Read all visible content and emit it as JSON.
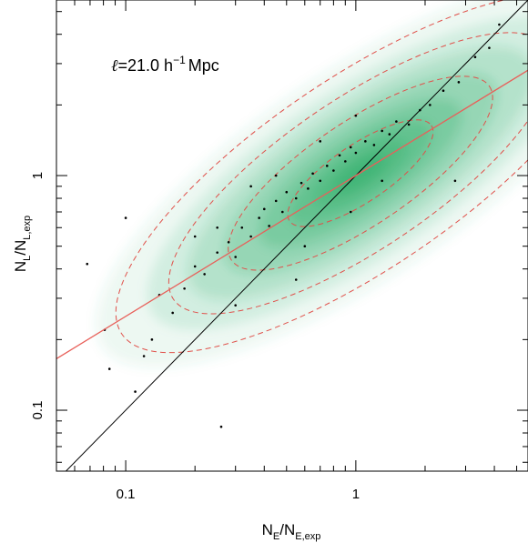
{
  "chart_data": {
    "type": "scatter",
    "title": "",
    "annotation": {
      "ell": "ℓ",
      "text": "=21.0 h",
      "superscript": "−1",
      "unit": "Mpc"
    },
    "xlabel": {
      "main": "N",
      "sub1": "E",
      "slash": "/N",
      "sub2": "E,exp"
    },
    "ylabel": {
      "main": "N",
      "sub1": "L",
      "slash": "/N",
      "sub2": "L,exp"
    },
    "xscale": "log",
    "yscale": "log",
    "xlim": [
      0.05,
      5.6
    ],
    "ylim": [
      0.055,
      5.6
    ],
    "x_tick_labels": [
      {
        "value": 0.1,
        "label": "0.1"
      },
      {
        "value": 1,
        "label": "1"
      }
    ],
    "y_tick_labels": [
      {
        "value": 0.1,
        "label": "0.1"
      },
      {
        "value": 1,
        "label": "1"
      }
    ],
    "grid": false,
    "colors": {
      "density_fill": "#2fae6a",
      "contour": "#e0504a",
      "fit_line": "#e8605a",
      "identity_line": "#000000",
      "points": "#000000"
    },
    "density": {
      "center_log": [
        0.02,
        0.01
      ],
      "sigma_major_log": 0.52,
      "sigma_minor_log": 0.17,
      "angle_deg": 34
    },
    "contour_levels_sigma": [
      0.55,
      1.0,
      1.45,
      1.85
    ],
    "fit_line": {
      "slope": 0.6,
      "intercept_log": 0.0
    },
    "identity_line": {
      "slope": 1,
      "intercept_log": 0
    },
    "points": [
      [
        0.068,
        0.42
      ],
      [
        0.081,
        0.22
      ],
      [
        0.085,
        0.15
      ],
      [
        0.1,
        0.66
      ],
      [
        0.11,
        0.12
      ],
      [
        0.12,
        0.17
      ],
      [
        0.13,
        0.2
      ],
      [
        0.26,
        0.085
      ],
      [
        0.14,
        0.31
      ],
      [
        0.16,
        0.26
      ],
      [
        0.18,
        0.33
      ],
      [
        0.2,
        0.41
      ],
      [
        0.22,
        0.38
      ],
      [
        0.25,
        0.47
      ],
      [
        0.28,
        0.52
      ],
      [
        0.3,
        0.45
      ],
      [
        0.32,
        0.6
      ],
      [
        0.35,
        0.55
      ],
      [
        0.38,
        0.66
      ],
      [
        0.4,
        0.72
      ],
      [
        0.42,
        0.61
      ],
      [
        0.45,
        0.78
      ],
      [
        0.48,
        0.7
      ],
      [
        0.5,
        0.85
      ],
      [
        0.55,
        0.8
      ],
      [
        0.58,
        0.93
      ],
      [
        0.62,
        0.88
      ],
      [
        0.65,
        1.02
      ],
      [
        0.7,
        0.95
      ],
      [
        0.75,
        1.1
      ],
      [
        0.8,
        1.05
      ],
      [
        0.85,
        1.22
      ],
      [
        0.9,
        1.15
      ],
      [
        0.95,
        1.32
      ],
      [
        1.0,
        1.25
      ],
      [
        1.1,
        1.4
      ],
      [
        1.2,
        1.35
      ],
      [
        1.3,
        1.55
      ],
      [
        1.4,
        1.5
      ],
      [
        1.5,
        1.7
      ],
      [
        1.7,
        1.65
      ],
      [
        1.9,
        1.9
      ],
      [
        2.1,
        2.0
      ],
      [
        2.4,
        2.3
      ],
      [
        2.8,
        2.5
      ],
      [
        3.3,
        3.2
      ],
      [
        3.8,
        3.5
      ],
      [
        4.2,
        4.4
      ],
      [
        2.7,
        0.95
      ],
      [
        0.55,
        0.36
      ],
      [
        0.3,
        0.28
      ],
      [
        0.6,
        0.5
      ],
      [
        0.95,
        0.7
      ],
      [
        1.3,
        0.95
      ],
      [
        0.25,
        0.6
      ],
      [
        0.45,
        1.0
      ],
      [
        0.7,
        1.4
      ],
      [
        1.0,
        1.8
      ],
      [
        0.35,
        0.9
      ],
      [
        0.2,
        0.55
      ]
    ]
  }
}
